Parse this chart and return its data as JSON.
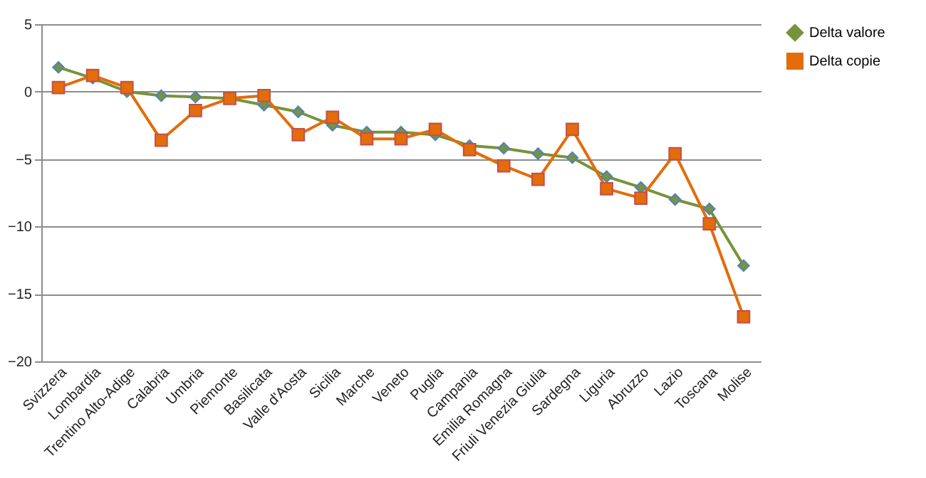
{
  "chart_data": {
    "type": "line",
    "categories": [
      "Svizzera",
      "Lombardia",
      "Trentino Alto-Adige",
      "Calabria",
      "Umbria",
      "Piemonte",
      "Basilicata",
      "Valle d'Aosta",
      "Sicilia",
      "Marche",
      "Veneto",
      "Puglia",
      "Campania",
      "Emilia Romagna",
      "Friuli Venezia Giulia",
      "Sardegna",
      "Liguria",
      "Abruzzo",
      "Lazio",
      "Toscana",
      "Molise"
    ],
    "series": [
      {
        "name": "Delta valore",
        "color": "#77933c",
        "marker": "diamond",
        "values": [
          1.8,
          1.0,
          0.0,
          -0.3,
          -0.4,
          -0.5,
          -1.0,
          -1.5,
          -2.5,
          -3.0,
          -3.0,
          -3.2,
          -4.0,
          -4.2,
          -4.6,
          -4.9,
          -6.3,
          -7.1,
          -8.0,
          -8.7,
          -12.9
        ]
      },
      {
        "name": "Delta copie",
        "color": "#e46c0a",
        "marker": "square",
        "values": [
          0.3,
          1.2,
          0.3,
          -3.6,
          -1.4,
          -0.5,
          -0.3,
          -3.2,
          -1.9,
          -3.5,
          -3.5,
          -2.8,
          -4.3,
          -5.5,
          -6.5,
          -2.8,
          -7.2,
          -7.9,
          -4.6,
          -9.8,
          -16.7
        ]
      }
    ],
    "ylim": [
      -20,
      5
    ],
    "yticks": [
      -20,
      -15,
      -10,
      -5,
      0,
      5
    ],
    "grid": "y",
    "legend": "right",
    "line_style": "solid"
  }
}
